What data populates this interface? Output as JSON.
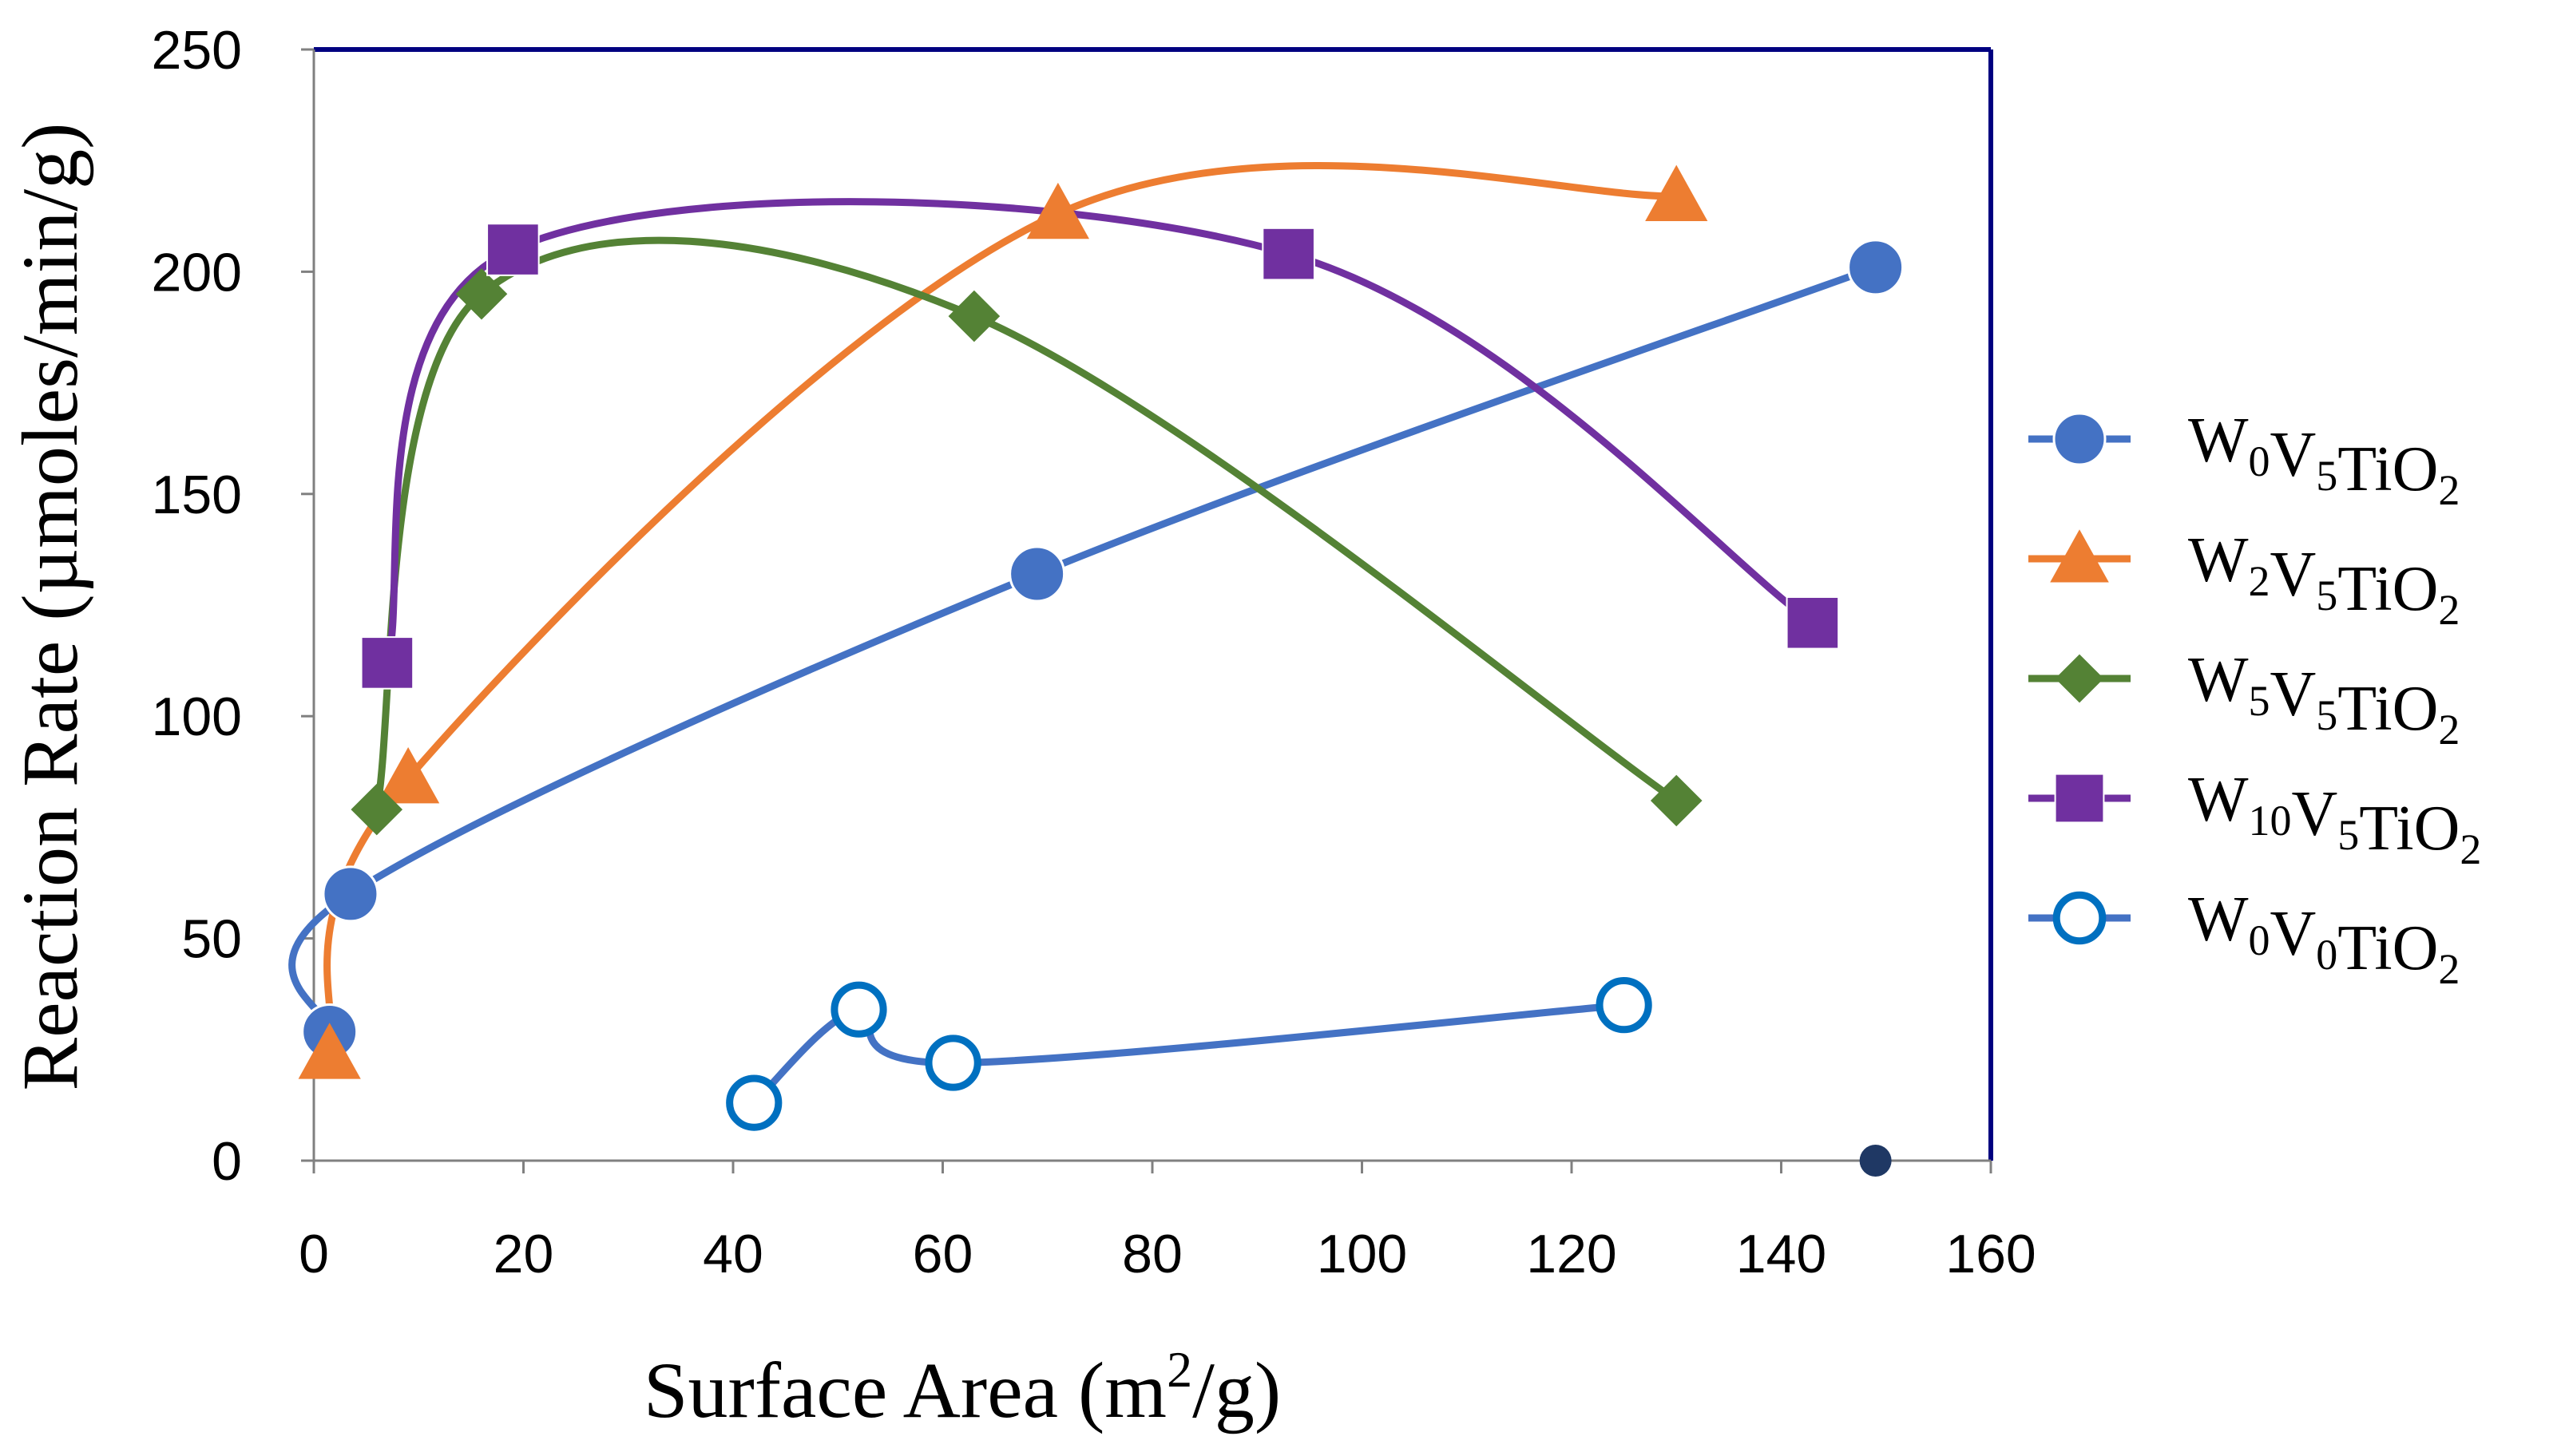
{
  "chart_data": {
    "type": "line",
    "title": "",
    "xlabel": {
      "prefix": "Surface Area (m",
      "sup": "2",
      "suffix": "/g)"
    },
    "ylabel": "Reaction Rate (µmoles/min/g)",
    "xlim": [
      0,
      160
    ],
    "ylim": [
      0,
      250
    ],
    "xticks": [
      "0",
      "20",
      "40",
      "60",
      "80",
      "100",
      "120",
      "140",
      "160"
    ],
    "yticks": [
      "0",
      "50",
      "100",
      "150",
      "200",
      "250"
    ],
    "legend_position": "right",
    "series": [
      {
        "name": "W0V5TiO2",
        "label_parts": [
          [
            "W",
            "0"
          ],
          [
            "V",
            "5"
          ],
          [
            "TiO",
            "2"
          ]
        ],
        "marker": "circle",
        "color": "#4472C4",
        "curve": "smooth",
        "points": [
          [
            1.5,
            29
          ],
          [
            3.5,
            60
          ],
          [
            69,
            132
          ],
          [
            149,
            201
          ]
        ]
      },
      {
        "name": "W2V5TiO2",
        "label_parts": [
          [
            "W",
            "2"
          ],
          [
            "V",
            "5"
          ],
          [
            "TiO",
            "2"
          ]
        ],
        "marker": "triangle",
        "color": "#ED7D31",
        "curve": "smooth",
        "points": [
          [
            1.5,
            24
          ],
          [
            9,
            86
          ],
          [
            71,
            213
          ],
          [
            130,
            217
          ]
        ]
      },
      {
        "name": "W5V5TiO2",
        "label_parts": [
          [
            "W",
            "5"
          ],
          [
            "V",
            "5"
          ],
          [
            "TiO",
            "2"
          ]
        ],
        "marker": "diamond",
        "color": "#548235",
        "curve": "smooth",
        "points": [
          [
            6,
            79
          ],
          [
            16,
            195
          ],
          [
            63,
            190
          ],
          [
            130,
            81
          ]
        ]
      },
      {
        "name": "W10V5TiO2",
        "label_parts": [
          [
            "W",
            "10"
          ],
          [
            "V",
            "5"
          ],
          [
            "TiO",
            "2"
          ]
        ],
        "marker": "square",
        "color": "#7030A0",
        "curve": "smooth",
        "points": [
          [
            7,
            112
          ],
          [
            19,
            205
          ],
          [
            93,
            204
          ],
          [
            143,
            121
          ]
        ]
      },
      {
        "name": "W0V0TiO2",
        "label_parts": [
          [
            "W",
            "0"
          ],
          [
            "V",
            "0"
          ],
          [
            "TiO",
            "2"
          ]
        ],
        "marker": "circle-open",
        "color": "#0070C0",
        "line_color": "#4472C4",
        "curve": "smooth",
        "points": [
          [
            42,
            13
          ],
          [
            52,
            34
          ],
          [
            61,
            22
          ],
          [
            125,
            35
          ]
        ]
      }
    ],
    "extra_points": [
      {
        "x": 149,
        "y": 0,
        "color": "#1F3864"
      }
    ],
    "frame_color": "#000080",
    "axis_color": "#808080"
  }
}
